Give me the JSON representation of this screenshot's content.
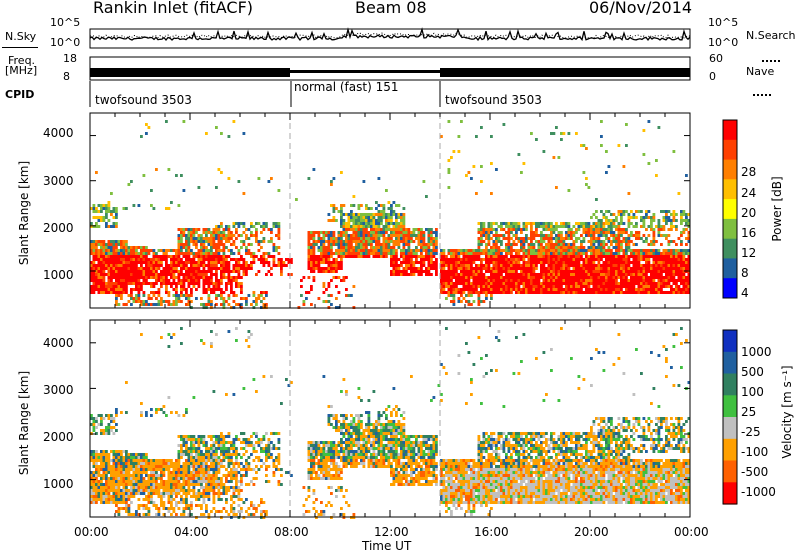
{
  "header": {
    "station": "Rankin Inlet (fitACF)",
    "beam": "Beam 08",
    "date": "06/Nov/2014"
  },
  "noise_panel": {
    "left_label": "N.Sky",
    "left_ticks": [
      "10^5",
      "10^0"
    ],
    "right_ticks": [
      "10^5",
      "10^0"
    ],
    "right_label": "N.Search"
  },
  "freq_panel": {
    "left_label_top": "Freq.",
    "left_label_bottom": "[MHz]",
    "left_ticks": [
      "18",
      "8"
    ],
    "right_ticks": [
      "60",
      "0"
    ],
    "right_label": "Nave"
  },
  "cpid_panel": {
    "label": "CPID",
    "segments": [
      {
        "name": "twofsound 3503",
        "start_hr": 0,
        "end_hr": 8
      },
      {
        "name": "normal (fast) 151",
        "start_hr": 8,
        "end_hr": 14
      },
      {
        "name": "twofsound 3503",
        "start_hr": 14,
        "end_hr": 24
      }
    ]
  },
  "power_panel": {
    "ylabel": "Slant Range [km]",
    "yticks": [
      "4000",
      "3000",
      "2000",
      "1000"
    ],
    "colorbar_label": "Power [dB]",
    "colorbar_ticks": [
      "28",
      "24",
      "20",
      "16",
      "12",
      "8",
      "4"
    ],
    "colors": [
      "#ff0000",
      "#ff4000",
      "#ff7f00",
      "#ffbf00",
      "#ffff00",
      "#7fbf3f",
      "#3f8f5f",
      "#1f5f9f",
      "#0000ff"
    ]
  },
  "velocity_panel": {
    "ylabel": "Slant Range [km]",
    "yticks": [
      "4000",
      "3000",
      "2000",
      "1000"
    ],
    "colorbar_label": "Velocity [m s⁻¹]",
    "colorbar_ticks": [
      "1000",
      "500",
      "100",
      "25",
      "-25",
      "-100",
      "-500",
      "-1000"
    ],
    "colors": [
      "#1030c0",
      "#2060a0",
      "#308060",
      "#40c040",
      "#c0c0c0",
      "#ffa000",
      "#ff6000",
      "#ff0000"
    ]
  },
  "xaxis": {
    "label": "Time UT",
    "ticks": [
      "00:00",
      "04:00",
      "08:00",
      "12:00",
      "16:00",
      "20:00",
      "00:00"
    ]
  },
  "chart_data": [
    {
      "type": "line",
      "title": "Rankin Inlet (fitACF)  Beam 08  06/Nov/2014",
      "series": [
        {
          "name": "N.Sky"
        },
        {
          "name": "N.Search"
        }
      ],
      "ylabel_left": "N.Sky",
      "ylabel_right": "N.Search",
      "ylim": [
        "10^0",
        "10^5"
      ],
      "xlim": [
        0,
        24
      ]
    },
    {
      "type": "line",
      "series": [
        {
          "name": "Freq.",
          "approx_value_MHz": 10
        },
        {
          "name": "Nave"
        }
      ],
      "ylim_left": [
        8,
        18
      ],
      "ylim_right": [
        0,
        60
      ],
      "xlim": [
        0,
        24
      ]
    },
    {
      "type": "heatmap",
      "quantity": "Power [dB]",
      "x": "Time UT (hours)",
      "y": "Slant Range [km]",
      "xlim": [
        0,
        24
      ],
      "ylim": [
        180,
        4500
      ],
      "clim": [
        0,
        30
      ],
      "colorbar_ticks": [
        4,
        8,
        12,
        16,
        20,
        24,
        28
      ]
    },
    {
      "type": "heatmap",
      "quantity": "Velocity [m s^-1]",
      "x": "Time UT (hours)",
      "y": "Slant Range [km]",
      "xlim": [
        0,
        24
      ],
      "ylim": [
        180,
        4500
      ],
      "colorbar_ticks": [
        -1000,
        -500,
        -100,
        -25,
        25,
        100,
        500,
        1000
      ]
    }
  ]
}
